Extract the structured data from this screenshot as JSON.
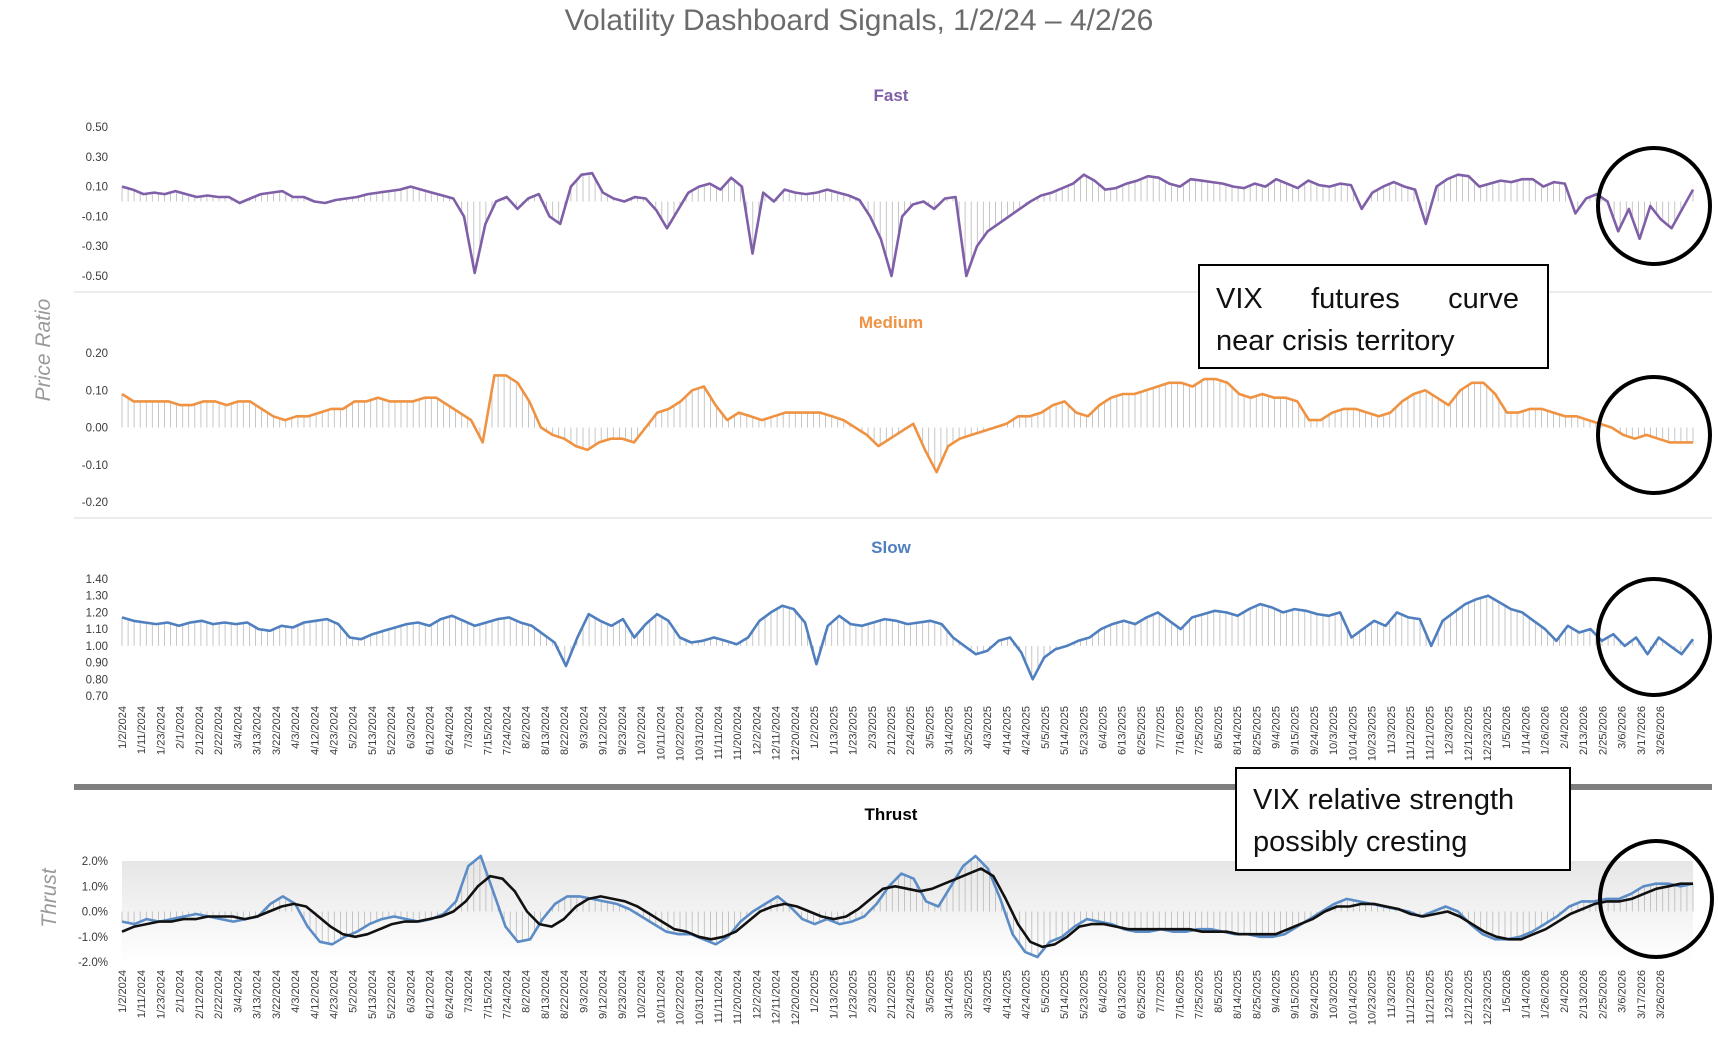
{
  "title": "Volatility Dashboard Signals, 1/2/24 – 4/2/26",
  "colors": {
    "fast": "#7f5fa8",
    "medium": "#ef9343",
    "slow": "#4f7fbf",
    "thrust_line": "#5b8cc6",
    "thrust_avg": "#111111",
    "drop_lines": "#b8b8b8",
    "divider": "#7f7f7f"
  },
  "y_axis_label_top": "Price Ratio",
  "y_axis_label_bottom": "Thrust",
  "x_tick_labels": [
    "1/2/2024",
    "1/11/2024",
    "1/23/2024",
    "2/1/2024",
    "2/12/2024",
    "2/22/2024",
    "3/4/2024",
    "3/13/2024",
    "3/22/2024",
    "4/3/2024",
    "4/12/2024",
    "4/23/2024",
    "5/2/2024",
    "5/13/2024",
    "5/22/2024",
    "6/3/2024",
    "6/12/2024",
    "6/24/2024",
    "7/3/2024",
    "7/15/2024",
    "7/24/2024",
    "8/2/2024",
    "8/13/2024",
    "8/22/2024",
    "9/3/2024",
    "9/12/2024",
    "9/23/2024",
    "10/2/2024",
    "10/11/2024",
    "10/22/2024",
    "10/31/2024",
    "11/11/2024",
    "11/20/2024",
    "12/2/2024",
    "12/11/2024",
    "12/20/2024",
    "1/2/2025",
    "1/13/2025",
    "1/23/2025",
    "2/3/2025",
    "2/12/2025",
    "2/24/2025",
    "3/5/2025",
    "3/14/2025",
    "3/25/2025",
    "4/3/2025",
    "4/14/2025",
    "4/24/2025",
    "5/5/2025",
    "5/14/2025",
    "5/23/2025",
    "6/4/2025",
    "6/13/2025",
    "6/25/2025",
    "7/7/2025",
    "7/16/2025",
    "7/25/2025",
    "8/5/2025",
    "8/14/2025",
    "8/25/2025",
    "9/4/2025",
    "9/15/2025",
    "9/24/2025",
    "10/3/2025",
    "10/14/2025",
    "10/23/2025",
    "11/3/2025",
    "11/12/2025",
    "11/21/2025",
    "12/3/2025",
    "12/12/2025",
    "12/23/2025",
    "1/5/2026",
    "1/14/2026",
    "1/26/2026",
    "2/4/2026",
    "2/13/2026",
    "2/25/2026",
    "3/6/2026",
    "3/17/2026",
    "3/26/2026"
  ],
  "annotations": {
    "note1": [
      "VIX      futures      curve",
      "near crisis territory"
    ],
    "note2": [
      "VIX relative strength",
      "possibly cresting"
    ]
  },
  "chart_data": [
    {
      "type": "line",
      "title": "Fast",
      "ylim": [
        -0.5,
        0.5
      ],
      "y_ticks": [
        "0.50",
        "0.30",
        "0.10",
        "-0.10",
        "-0.30",
        "-0.50"
      ],
      "x_range": [
        "1/2/2024",
        "4/2/2026"
      ],
      "series": [
        {
          "values": [
            0.1,
            0.08,
            0.05,
            0.06,
            0.05,
            0.07,
            0.05,
            0.03,
            0.04,
            0.03,
            0.03,
            -0.01,
            0.02,
            0.05,
            0.06,
            0.07,
            0.03,
            0.03,
            0.0,
            -0.01,
            0.01,
            0.02,
            0.03,
            0.05,
            0.06,
            0.07,
            0.08,
            0.1,
            0.08,
            0.06,
            0.04,
            0.02,
            -0.1,
            -0.48,
            -0.15,
            0.0,
            0.03,
            -0.05,
            0.02,
            0.05,
            -0.1,
            -0.15,
            0.1,
            0.18,
            0.19,
            0.06,
            0.02,
            0.0,
            0.03,
            0.02,
            -0.06,
            -0.18,
            -0.06,
            0.06,
            0.1,
            0.12,
            0.08,
            0.16,
            0.1,
            -0.35,
            0.06,
            0.0,
            0.08,
            0.06,
            0.05,
            0.06,
            0.08,
            0.06,
            0.04,
            0.01,
            -0.1,
            -0.25,
            -0.5,
            -0.1,
            -0.02,
            0.0,
            -0.05,
            0.02,
            0.03,
            -0.5,
            -0.3,
            -0.2,
            -0.15,
            -0.1,
            -0.05,
            0.0,
            0.04,
            0.06,
            0.09,
            0.12,
            0.18,
            0.14,
            0.08,
            0.09,
            0.12,
            0.14,
            0.17,
            0.16,
            0.12,
            0.1,
            0.15,
            0.14,
            0.13,
            0.12,
            0.1,
            0.09,
            0.12,
            0.1,
            0.15,
            0.12,
            0.09,
            0.14,
            0.11,
            0.1,
            0.12,
            0.11,
            -0.05,
            0.06,
            0.1,
            0.13,
            0.1,
            0.08,
            -0.15,
            0.1,
            0.15,
            0.18,
            0.17,
            0.1,
            0.12,
            0.14,
            0.13,
            0.15,
            0.15,
            0.1,
            0.13,
            0.12,
            -0.08,
            0.02,
            0.05,
            0.0,
            -0.2,
            -0.05,
            -0.25,
            -0.03,
            -0.12,
            -0.18,
            -0.05,
            0.08
          ]
        }
      ]
    },
    {
      "type": "line",
      "title": "Medium",
      "ylim": [
        -0.2,
        0.2
      ],
      "y_ticks": [
        "0.20",
        "0.10",
        "0.00",
        "-0.10",
        "-0.20"
      ],
      "x_range": [
        "1/2/2024",
        "4/2/2026"
      ],
      "series": [
        {
          "values": [
            0.09,
            0.07,
            0.07,
            0.07,
            0.07,
            0.06,
            0.06,
            0.07,
            0.07,
            0.06,
            0.07,
            0.07,
            0.05,
            0.03,
            0.02,
            0.03,
            0.03,
            0.04,
            0.05,
            0.05,
            0.07,
            0.07,
            0.08,
            0.07,
            0.07,
            0.07,
            0.08,
            0.08,
            0.06,
            0.04,
            0.02,
            -0.04,
            0.14,
            0.14,
            0.12,
            0.07,
            0.0,
            -0.02,
            -0.03,
            -0.05,
            -0.06,
            -0.04,
            -0.03,
            -0.03,
            -0.04,
            0.0,
            0.04,
            0.05,
            0.07,
            0.1,
            0.11,
            0.06,
            0.02,
            0.04,
            0.03,
            0.02,
            0.03,
            0.04,
            0.04,
            0.04,
            0.04,
            0.03,
            0.02,
            0.0,
            -0.02,
            -0.05,
            -0.03,
            -0.01,
            0.01,
            -0.06,
            -0.12,
            -0.05,
            -0.03,
            -0.02,
            -0.01,
            0.0,
            0.01,
            0.03,
            0.03,
            0.04,
            0.06,
            0.07,
            0.04,
            0.03,
            0.06,
            0.08,
            0.09,
            0.09,
            0.1,
            0.11,
            0.12,
            0.12,
            0.11,
            0.13,
            0.13,
            0.12,
            0.09,
            0.08,
            0.09,
            0.08,
            0.08,
            0.07,
            0.02,
            0.02,
            0.04,
            0.05,
            0.05,
            0.04,
            0.03,
            0.04,
            0.07,
            0.09,
            0.1,
            0.08,
            0.06,
            0.1,
            0.12,
            0.12,
            0.09,
            0.04,
            0.04,
            0.05,
            0.05,
            0.04,
            0.03,
            0.03,
            0.02,
            0.01,
            0.0,
            -0.02,
            -0.03,
            -0.02,
            -0.03,
            -0.04,
            -0.04,
            -0.04
          ]
        }
      ]
    },
    {
      "type": "line",
      "title": "Slow",
      "ylim": [
        0.7,
        1.4
      ],
      "y_ticks": [
        "1.40",
        "1.30",
        "1.20",
        "1.10",
        "1.00",
        "0.90",
        "0.80",
        "0.70"
      ],
      "x_range": [
        "1/2/2024",
        "4/2/2026"
      ],
      "series": [
        {
          "values": [
            1.17,
            1.15,
            1.14,
            1.13,
            1.14,
            1.12,
            1.14,
            1.15,
            1.13,
            1.14,
            1.13,
            1.14,
            1.1,
            1.09,
            1.12,
            1.11,
            1.14,
            1.15,
            1.16,
            1.13,
            1.05,
            1.04,
            1.07,
            1.09,
            1.11,
            1.13,
            1.14,
            1.12,
            1.16,
            1.18,
            1.15,
            1.12,
            1.14,
            1.16,
            1.17,
            1.14,
            1.12,
            1.07,
            1.02,
            0.88,
            1.05,
            1.19,
            1.15,
            1.12,
            1.16,
            1.05,
            1.13,
            1.19,
            1.15,
            1.05,
            1.02,
            1.03,
            1.05,
            1.03,
            1.01,
            1.05,
            1.15,
            1.2,
            1.24,
            1.22,
            1.14,
            0.89,
            1.12,
            1.18,
            1.13,
            1.12,
            1.14,
            1.16,
            1.15,
            1.13,
            1.14,
            1.15,
            1.13,
            1.05,
            1.0,
            0.95,
            0.97,
            1.03,
            1.05,
            0.96,
            0.8,
            0.93,
            0.98,
            1.0,
            1.03,
            1.05,
            1.1,
            1.13,
            1.15,
            1.13,
            1.17,
            1.2,
            1.15,
            1.1,
            1.17,
            1.19,
            1.21,
            1.2,
            1.18,
            1.22,
            1.25,
            1.23,
            1.2,
            1.22,
            1.21,
            1.19,
            1.18,
            1.2,
            1.05,
            1.1,
            1.15,
            1.12,
            1.2,
            1.17,
            1.16,
            1.0,
            1.15,
            1.2,
            1.25,
            1.28,
            1.3,
            1.26,
            1.22,
            1.2,
            1.15,
            1.1,
            1.03,
            1.12,
            1.08,
            1.1,
            1.03,
            1.07,
            1.0,
            1.05,
            0.95,
            1.05,
            1.0,
            0.95,
            1.04
          ]
        }
      ]
    },
    {
      "type": "line",
      "title": "Thrust",
      "ylim": [
        -2.0,
        2.0
      ],
      "y_ticks": [
        "2.0%",
        "1.0%",
        "0.0%",
        "-1.0%",
        "-2.0%"
      ],
      "x_range": [
        "1/2/2024",
        "4/2/2026"
      ],
      "series": [
        {
          "values": [
            -0.4,
            -0.5,
            -0.3,
            -0.4,
            -0.3,
            -0.2,
            -0.1,
            -0.2,
            -0.3,
            -0.4,
            -0.3,
            -0.2,
            0.3,
            0.6,
            0.3,
            -0.6,
            -1.2,
            -1.3,
            -1.0,
            -0.8,
            -0.5,
            -0.3,
            -0.2,
            -0.3,
            -0.4,
            -0.3,
            -0.1,
            0.4,
            1.8,
            2.2,
            0.8,
            -0.6,
            -1.2,
            -1.1,
            -0.3,
            0.3,
            0.6,
            0.6,
            0.5,
            0.4,
            0.3,
            0.1,
            -0.2,
            -0.5,
            -0.8,
            -0.9,
            -0.9,
            -1.1,
            -1.3,
            -1.0,
            -0.4,
            0.0,
            0.3,
            0.6,
            0.2,
            -0.3,
            -0.5,
            -0.3,
            -0.5,
            -0.4,
            -0.2,
            0.3,
            1.0,
            1.5,
            1.3,
            0.4,
            0.2,
            1.0,
            1.8,
            2.2,
            1.7,
            0.5,
            -0.9,
            -1.6,
            -1.8,
            -1.2,
            -1.0,
            -0.6,
            -0.3,
            -0.4,
            -0.5,
            -0.7,
            -0.8,
            -0.8,
            -0.7,
            -0.8,
            -0.8,
            -0.7,
            -0.7,
            -0.8,
            -0.9,
            -0.9,
            -1.0,
            -1.0,
            -0.9,
            -0.6,
            -0.3,
            0.0,
            0.3,
            0.5,
            0.4,
            0.3,
            0.2,
            0.1,
            0.0,
            -0.2,
            0.0,
            0.2,
            0.0,
            -0.5,
            -0.9,
            -1.1,
            -1.1,
            -1.0,
            -0.8,
            -0.5,
            -0.2,
            0.2,
            0.4,
            0.4,
            0.5,
            0.5,
            0.7,
            1.0,
            1.1,
            1.1,
            1.0,
            1.1
          ]
        },
        {
          "values": [
            -0.8,
            -0.6,
            -0.5,
            -0.4,
            -0.4,
            -0.3,
            -0.3,
            -0.2,
            -0.2,
            -0.2,
            -0.3,
            -0.2,
            0.0,
            0.2,
            0.3,
            0.2,
            -0.2,
            -0.6,
            -0.9,
            -1.0,
            -0.9,
            -0.7,
            -0.5,
            -0.4,
            -0.4,
            -0.3,
            -0.2,
            0.0,
            0.4,
            1.0,
            1.4,
            1.3,
            0.8,
            0.0,
            -0.5,
            -0.6,
            -0.3,
            0.2,
            0.5,
            0.6,
            0.5,
            0.4,
            0.2,
            -0.1,
            -0.4,
            -0.7,
            -0.8,
            -1.0,
            -1.1,
            -1.0,
            -0.8,
            -0.4,
            0.0,
            0.2,
            0.3,
            0.2,
            0.0,
            -0.2,
            -0.3,
            -0.2,
            0.1,
            0.5,
            0.9,
            1.0,
            0.9,
            0.8,
            0.9,
            1.1,
            1.3,
            1.5,
            1.7,
            1.4,
            0.5,
            -0.5,
            -1.2,
            -1.4,
            -1.3,
            -1.0,
            -0.6,
            -0.5,
            -0.5,
            -0.6,
            -0.7,
            -0.7,
            -0.7,
            -0.7,
            -0.7,
            -0.7,
            -0.8,
            -0.8,
            -0.8,
            -0.9,
            -0.9,
            -0.9,
            -0.9,
            -0.7,
            -0.5,
            -0.3,
            0.0,
            0.2,
            0.2,
            0.3,
            0.3,
            0.2,
            0.1,
            -0.1,
            -0.2,
            -0.1,
            0.0,
            -0.2,
            -0.5,
            -0.8,
            -1.0,
            -1.1,
            -1.1,
            -0.9,
            -0.7,
            -0.4,
            -0.1,
            0.1,
            0.3,
            0.4,
            0.4,
            0.5,
            0.7,
            0.9,
            1.0,
            1.1,
            1.1
          ]
        }
      ]
    }
  ]
}
